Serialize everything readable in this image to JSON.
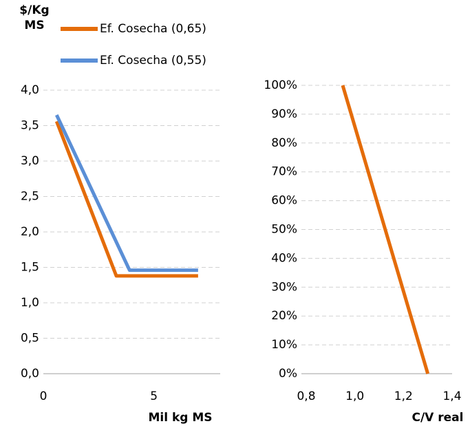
{
  "chart_data": [
    {
      "type": "line",
      "y_label": "$/Kg MS",
      "x_label": "Mil kg MS",
      "xlim": [
        0,
        8
      ],
      "xticks": [
        0,
        5
      ],
      "ylim": [
        0,
        4
      ],
      "yticks": [
        {
          "value": 0,
          "label": "0,0"
        },
        {
          "value": 0.5,
          "label": "0,5"
        },
        {
          "value": 1,
          "label": "1,0"
        },
        {
          "value": 1.5,
          "label": "1,5"
        },
        {
          "value": 2,
          "label": "2,0"
        },
        {
          "value": 2.5,
          "label": "2,5"
        },
        {
          "value": 3,
          "label": "3,0"
        },
        {
          "value": 3.5,
          "label": "3,5"
        },
        {
          "value": 4,
          "label": "4,0"
        }
      ],
      "grid": true,
      "series": [
        {
          "name": "Ef. Cosecha (0,65)",
          "color": "#e46c0a",
          "x": [
            0.6,
            3.3,
            7
          ],
          "values": [
            3.56,
            1.38,
            1.38
          ]
        },
        {
          "name": "Ef. Cosecha (0,55)",
          "color": "#5b8fd6",
          "x": [
            0.6,
            3.9,
            7
          ],
          "values": [
            3.65,
            1.46,
            1.46
          ]
        }
      ]
    },
    {
      "type": "line",
      "x_label": "C/V real",
      "xlim": [
        0.8,
        1.4
      ],
      "xticks": [
        {
          "value": 0.8,
          "label": "0,8"
        },
        {
          "value": 1.0,
          "label": "1,0"
        },
        {
          "value": 1.2,
          "label": "1,2"
        },
        {
          "value": 1.4,
          "label": "1,4"
        }
      ],
      "ylim": [
        0,
        100
      ],
      "yticks": [
        {
          "value": 0,
          "label": "0%"
        },
        {
          "value": 10,
          "label": "10%"
        },
        {
          "value": 20,
          "label": "20%"
        },
        {
          "value": 30,
          "label": "30%"
        },
        {
          "value": 40,
          "label": "40%"
        },
        {
          "value": 50,
          "label": "50%"
        },
        {
          "value": 60,
          "label": "60%"
        },
        {
          "value": 70,
          "label": "70%"
        },
        {
          "value": 80,
          "label": "80%"
        },
        {
          "value": 90,
          "label": "90%"
        },
        {
          "value": 100,
          "label": "100%"
        }
      ],
      "grid": true,
      "series": [
        {
          "color": "#e46c0a",
          "x": [
            1.3,
            0.95
          ],
          "values": [
            0,
            100
          ]
        }
      ]
    }
  ]
}
